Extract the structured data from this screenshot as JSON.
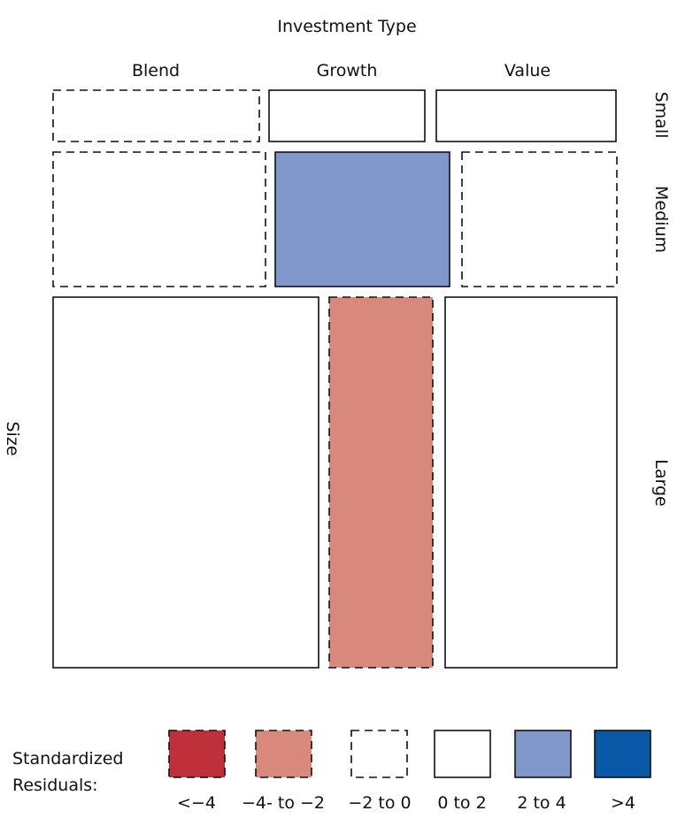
{
  "chart_data": {
    "type": "mosaic",
    "title": "Investment Type",
    "row_axis_label": "Size",
    "columns": [
      "Blend",
      "Growth",
      "Value"
    ],
    "rows": [
      "Small",
      "Medium",
      "Large"
    ],
    "cells": [
      {
        "row": "Small",
        "column": "Blend",
        "residual_class": "-2 to 0"
      },
      {
        "row": "Small",
        "column": "Growth",
        "residual_class": "0 to 2"
      },
      {
        "row": "Small",
        "column": "Value",
        "residual_class": "0 to 2"
      },
      {
        "row": "Medium",
        "column": "Blend",
        "residual_class": "-2 to 0"
      },
      {
        "row": "Medium",
        "column": "Growth",
        "residual_class": "2 to 4"
      },
      {
        "row": "Medium",
        "column": "Value",
        "residual_class": "-2 to 0"
      },
      {
        "row": "Large",
        "column": "Blend",
        "residual_class": "0 to 2"
      },
      {
        "row": "Large",
        "column": "Growth",
        "residual_class": "-4 to -2"
      },
      {
        "row": "Large",
        "column": "Value",
        "residual_class": "0 to 2"
      }
    ],
    "legend": {
      "title_line1": "Standardized",
      "title_line2": "Residuals:",
      "items": [
        {
          "label": "<−4",
          "class": "<-4",
          "fill": "#c0303a",
          "dashed": true
        },
        {
          "label": "−4- to −2",
          "class": "-4 to -2",
          "fill": "#d8897b",
          "dashed": true
        },
        {
          "label": "−2 to 0",
          "class": "-2 to 0",
          "fill": "#ffffff",
          "dashed": true
        },
        {
          "label": "0 to 2",
          "class": "0 to 2",
          "fill": "#ffffff",
          "dashed": false
        },
        {
          "label": "2 to 4",
          "class": "2 to 4",
          "fill": "#7f97cb",
          "dashed": false
        },
        {
          "label": ">4",
          "class": ">4",
          "fill": "#0a58a8",
          "dashed": false
        }
      ],
      "placement": "bottom"
    }
  }
}
